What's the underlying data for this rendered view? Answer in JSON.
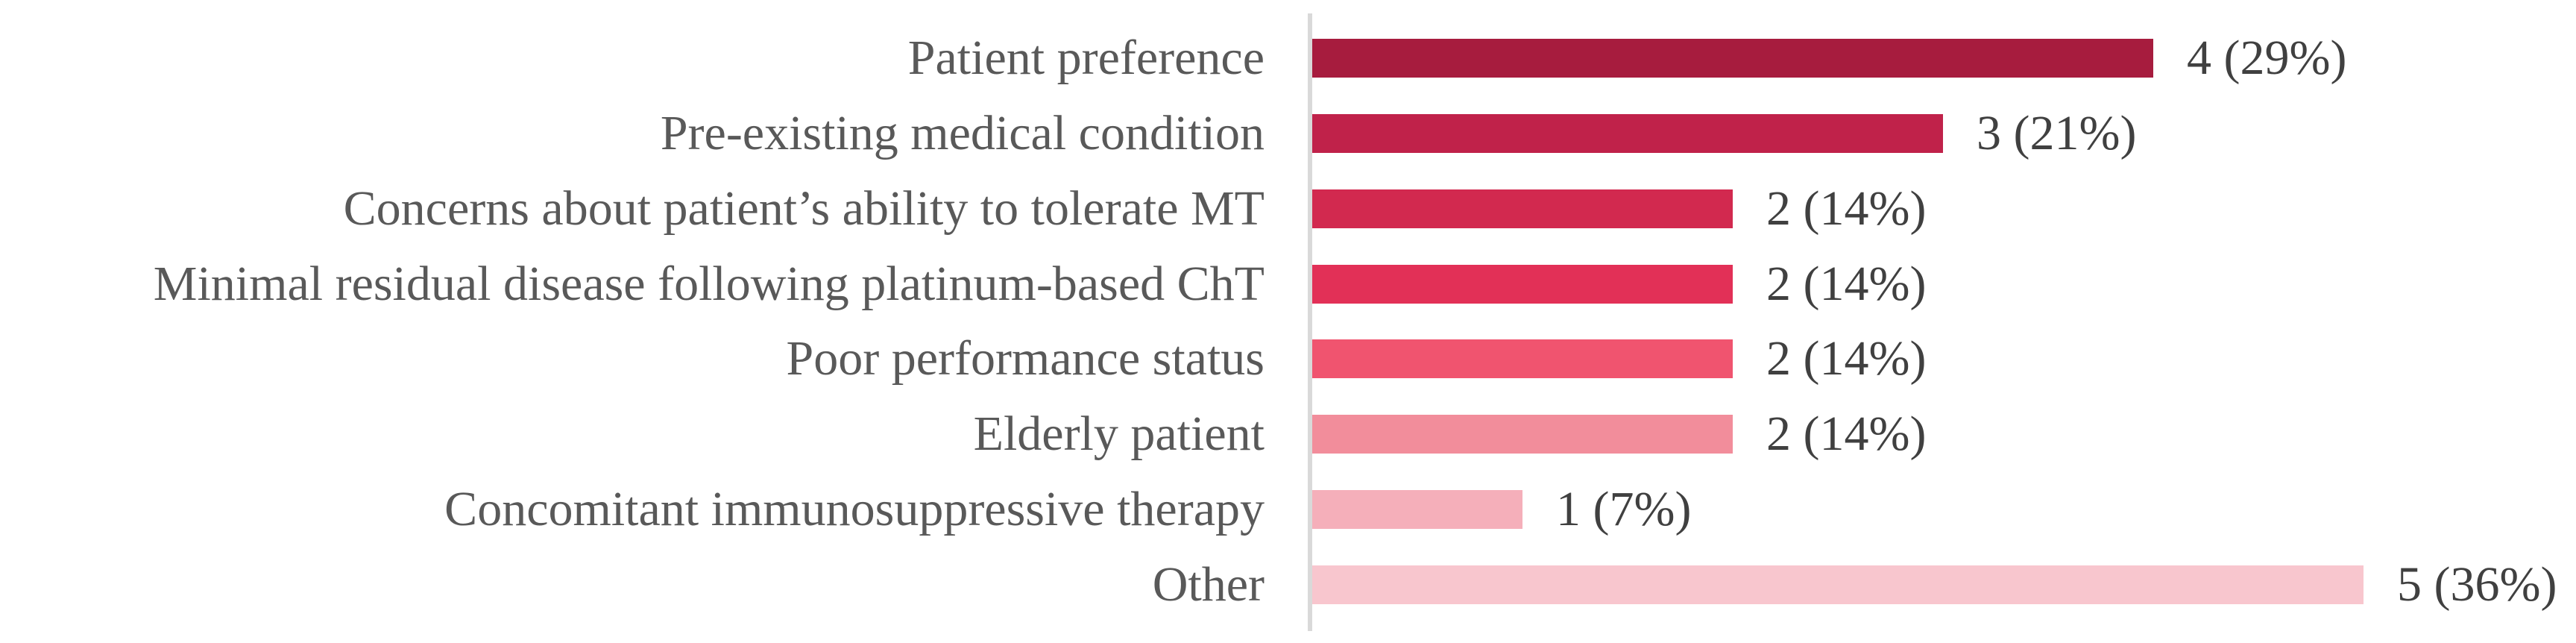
{
  "chart_data": {
    "type": "bar",
    "orientation": "horizontal",
    "title": "",
    "xlabel": "",
    "ylabel": "",
    "grid": false,
    "legend": false,
    "xlim": [
      0,
      5
    ],
    "categories": [
      "Patient preference",
      "Pre-existing medical condition",
      "Concerns about patient’s ability to tolerate MT",
      "Minimal residual disease following platinum-based ChT",
      "Poor performance status",
      "Elderly patient",
      "Concomitant immunosuppressive therapy",
      "Other"
    ],
    "values": [
      4,
      3,
      2,
      2,
      2,
      2,
      1,
      5
    ],
    "percentages": [
      29,
      21,
      14,
      14,
      14,
      14,
      7,
      36
    ],
    "value_labels": [
      "4 (29%)",
      "3 (21%)",
      "2 (14%)",
      "2 (14%)",
      "2 (14%)",
      "2 (14%)",
      "1 (7%)",
      "5 (36%)"
    ],
    "bar_colors": [
      "#A71C3E",
      "#C0224A",
      "#D2294F",
      "#E23057",
      "#F0546F",
      "#F28D9B",
      "#F5AFBA",
      "#F8C6CE"
    ],
    "axis_line_color": "#D9D9D9",
    "category_label_color": "#595959",
    "value_label_color": "#404040"
  }
}
